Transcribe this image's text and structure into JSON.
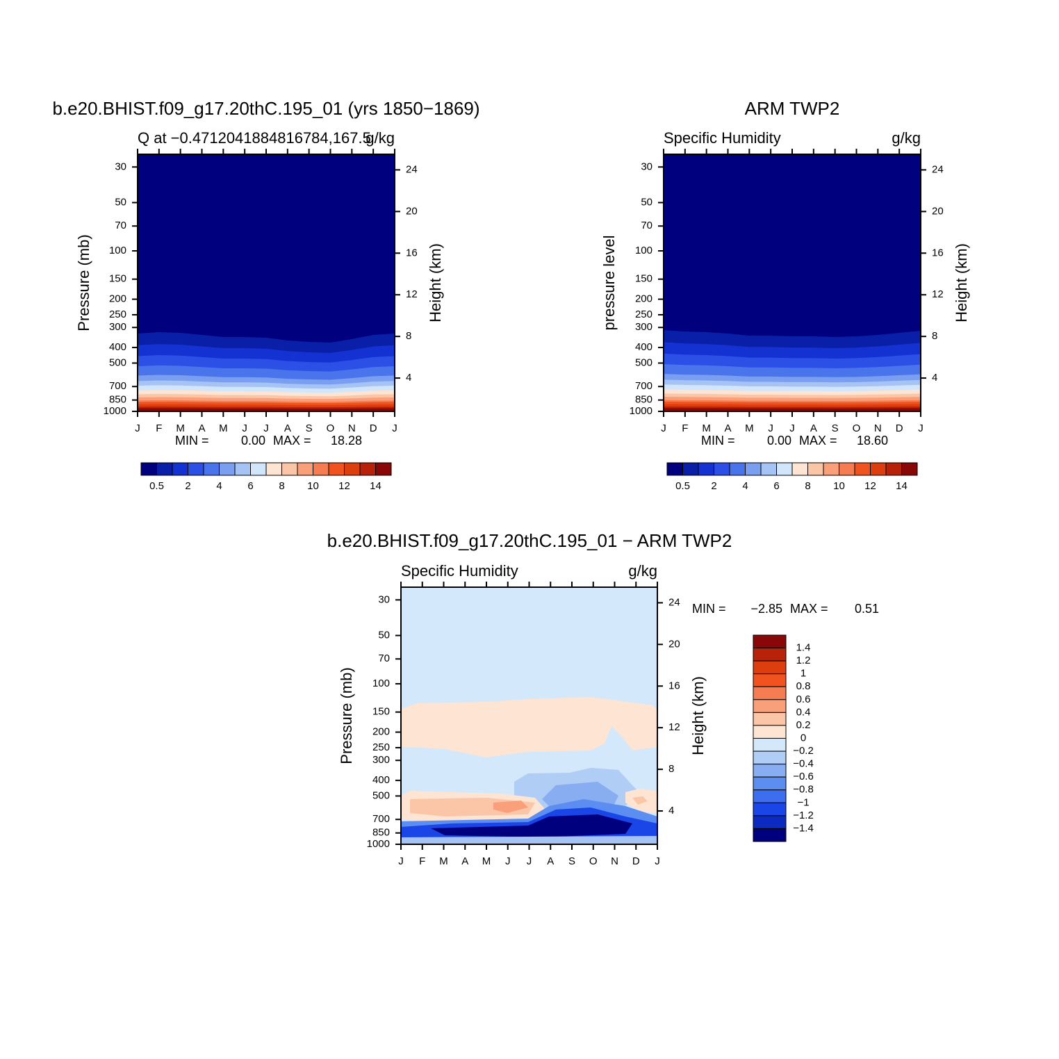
{
  "chart_data": [
    {
      "type": "contour",
      "title": "b.e20.BHIST.f09_g17.20thC.195_01 (yrs 1850−1869)",
      "subtitle_left": "Q at −0.4712041884816784,167.5",
      "subtitle_right": "g/kg",
      "y_label": "Pressure (mb)",
      "y2_label": "Height (km)",
      "categories": [
        "J",
        "F",
        "M",
        "A",
        "M",
        "J",
        "J",
        "A",
        "S",
        "O",
        "N",
        "D",
        "J"
      ],
      "ylim": [
        1000,
        25
      ],
      "y_scale": "log",
      "yticks": [
        30,
        50,
        70,
        100,
        150,
        200,
        250,
        300,
        400,
        500,
        700,
        850,
        1000
      ],
      "y2lim": [
        0.8,
        25.5
      ],
      "y2ticks": [
        4,
        8,
        12,
        16,
        20,
        24
      ],
      "min_text": "MIN =",
      "min": {
        "value": 0,
        "label": "0.00"
      },
      "max_text": "MAX =",
      "max": 18.28,
      "colorbar": {
        "orientation": "horizontal",
        "colors": [
          "#00007f",
          "#0a1fa8",
          "#1432d2",
          "#2c50e6",
          "#4a74ec",
          "#7a9ff0",
          "#a6c3f5",
          "#d2e6fb",
          "#fde4d3",
          "#fbc6a8",
          "#f9a07a",
          "#f67c51",
          "#f0531f",
          "#dd3e0e",
          "#b82209",
          "#8a0707"
        ],
        "labels": [
          0.5,
          2,
          4,
          6,
          8,
          10,
          12,
          14
        ]
      }
    },
    {
      "type": "contour",
      "title": "ARM TWP2",
      "subtitle_left": "Specific Humidity",
      "subtitle_right": "g/kg",
      "y_label": "pressure level",
      "y2_label": "Height (km)",
      "categories": [
        "J",
        "F",
        "M",
        "A",
        "M",
        "J",
        "J",
        "A",
        "S",
        "O",
        "N",
        "D",
        "J"
      ],
      "ylim": [
        1000,
        25
      ],
      "y_scale": "log",
      "yticks": [
        30,
        50,
        70,
        100,
        150,
        200,
        250,
        300,
        400,
        500,
        700,
        850,
        1000
      ],
      "y2lim": [
        0.8,
        25.5
      ],
      "y2ticks": [
        4,
        8,
        12,
        16,
        20,
        24
      ],
      "min_text": "MIN =",
      "min": {
        "value": 0,
        "label": "0.00"
      },
      "max_text": "MAX =",
      "max": {
        "value": 18.6,
        "label": "18.60"
      },
      "colorbar": {
        "orientation": "horizontal",
        "colors": [
          "#00007f",
          "#0a1fa8",
          "#1432d2",
          "#2c50e6",
          "#4a74ec",
          "#7a9ff0",
          "#a6c3f5",
          "#d2e6fb",
          "#fde4d3",
          "#fbc6a8",
          "#f9a07a",
          "#f67c51",
          "#f0531f",
          "#dd3e0e",
          "#b82209",
          "#8a0707"
        ],
        "labels": [
          0.5,
          2,
          4,
          6,
          8,
          10,
          12,
          14
        ]
      }
    },
    {
      "type": "contour-diff",
      "title": "b.e20.BHIST.f09_g17.20thC.195_01 − ARM TWP2",
      "subtitle_left": "Specific Humidity",
      "subtitle_right": "g/kg",
      "y_label": "Pressure (mb)",
      "y2_label": "Height (km)",
      "categories": [
        "J",
        "F",
        "M",
        "A",
        "M",
        "J",
        "J",
        "A",
        "S",
        "O",
        "N",
        "D",
        "J"
      ],
      "ylim": [
        1000,
        25
      ],
      "y_scale": "log",
      "yticks": [
        30,
        50,
        70,
        100,
        150,
        200,
        250,
        300,
        400,
        500,
        700,
        850,
        1000
      ],
      "y2lim": [
        0.8,
        25.5
      ],
      "y2ticks": [
        4,
        8,
        12,
        16,
        20,
        24
      ],
      "min_text": "MIN =",
      "min": {
        "value": -2.85,
        "label": "−2.85"
      },
      "max_text": "MAX =",
      "max": 0.51,
      "colorbar": {
        "orientation": "vertical",
        "colors": [
          "#8a0707",
          "#b82209",
          "#dd3e0e",
          "#f0531f",
          "#f67c51",
          "#f9a07a",
          "#fbc6a8",
          "#fde4d3",
          "#d4e8fc",
          "#b0cdf5",
          "#88adf0",
          "#5b8ef0",
          "#3d6ef0",
          "#1a46e8",
          "#0a2ac0",
          "#00007f"
        ],
        "labels": [
          1.4,
          1.2,
          1,
          0.8,
          0.6,
          0.4,
          0.2,
          0,
          {
            "value": -0.2,
            "label": "−0.2"
          },
          {
            "value": -0.4,
            "label": "−0.4"
          },
          {
            "value": -0.6,
            "label": "−0.6"
          },
          {
            "value": -0.8,
            "label": "−0.8"
          },
          {
            "value": -1,
            "label": "−1"
          },
          {
            "value": -1.2,
            "label": "−1.2"
          },
          {
            "value": -1.4,
            "label": "−1.4"
          }
        ]
      }
    }
  ]
}
